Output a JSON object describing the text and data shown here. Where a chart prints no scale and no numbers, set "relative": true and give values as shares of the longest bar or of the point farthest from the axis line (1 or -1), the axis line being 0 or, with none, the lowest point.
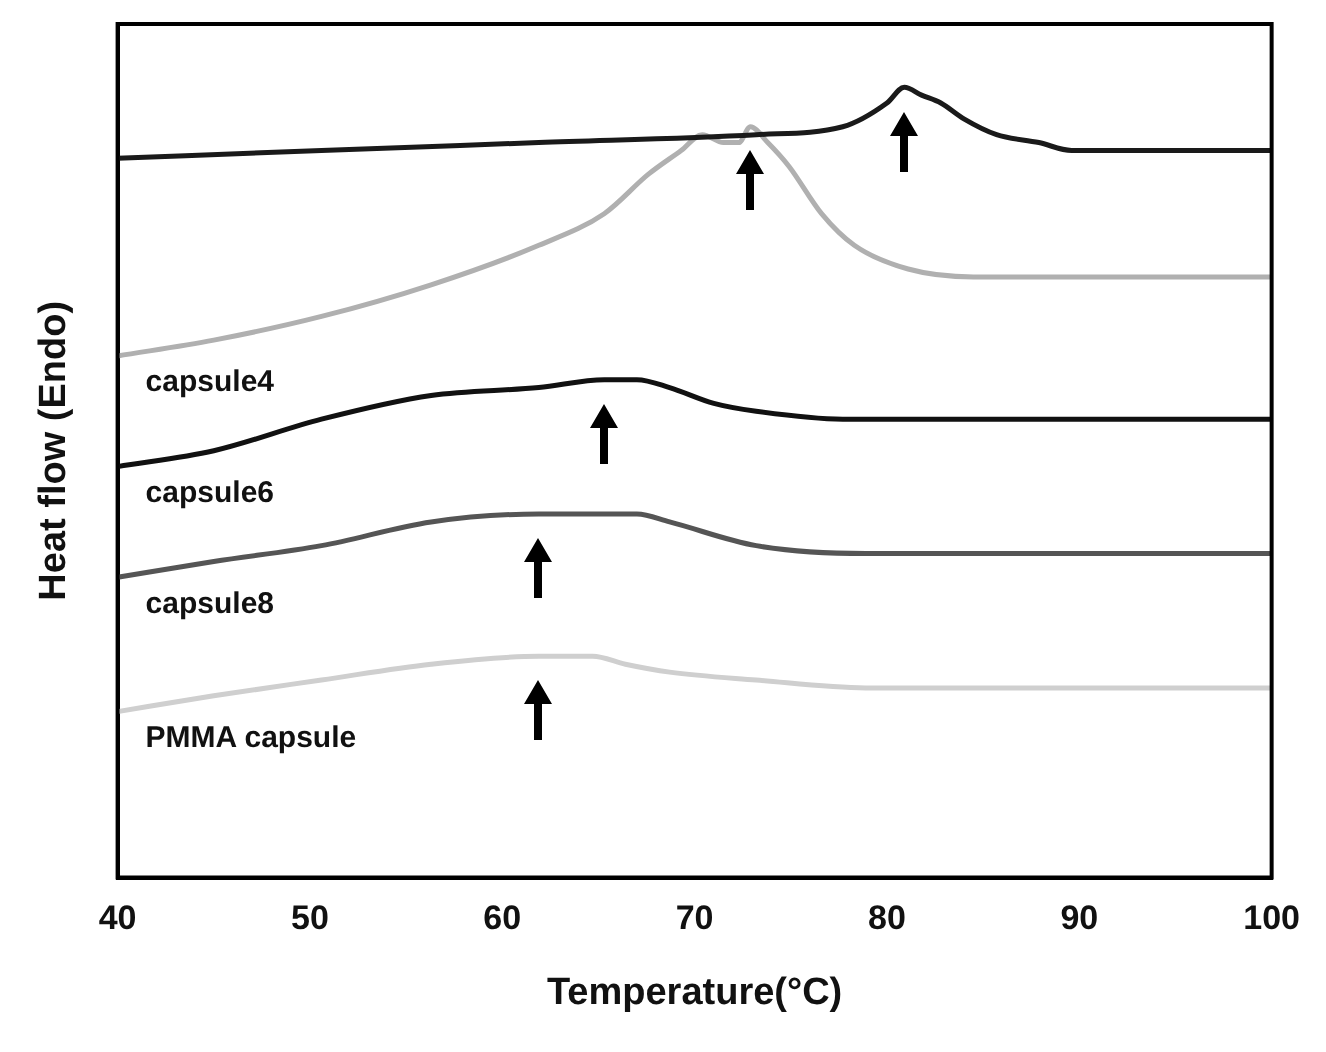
{
  "chart_data": {
    "type": "line",
    "xlabel": "Temperature(°C)",
    "ylabel": "Heat flow (Endo)",
    "relative": true,
    "xlim": [
      40,
      100
    ],
    "xticks": [
      40,
      50,
      60,
      70,
      80,
      90,
      100
    ],
    "grid": false,
    "legend": false,
    "marker": "none",
    "line_style": "solid",
    "series": [
      {
        "color": "#1a1a1a",
        "x": [
          40,
          50.6,
          61.9,
          73.2,
          77.7,
          80,
          80.9,
          81.8,
          82.8,
          84,
          85.7,
          87.9,
          89.6,
          91.3,
          95.8,
          100
        ],
        "values": [
          0.91,
          0.92,
          0.93,
          0.94,
          0.95,
          0.98,
          1,
          0.99,
          0.98,
          0.96,
          0.94,
          0.93,
          0.92,
          0.92,
          0.92,
          0.92
        ]
      },
      {
        "name": "capsule4",
        "color": "#b0b0b0",
        "x": [
          40,
          45,
          50.6,
          56.3,
          61.9,
          65.3,
          67.6,
          69.3,
          70.4,
          71.5,
          72.3,
          72.9,
          73.8,
          74.9,
          76.6,
          78.3,
          81.1,
          84.5,
          91.3,
          95.8,
          100
        ],
        "values": [
          0.66,
          0.68,
          0.71,
          0.75,
          0.8,
          0.84,
          0.89,
          0.92,
          0.94,
          0.93,
          0.93,
          0.95,
          0.93,
          0.9,
          0.84,
          0.8,
          0.77,
          0.76,
          0.76,
          0.76,
          0.76
        ]
      },
      {
        "name": "capsule6",
        "color": "#111111",
        "x": [
          40,
          45,
          50.6,
          56.3,
          61.9,
          65.3,
          67,
          68.7,
          71,
          73.2,
          77.7,
          84.5,
          100
        ],
        "values": [
          0.52,
          0.54,
          0.58,
          0.61,
          0.62,
          0.63,
          0.63,
          0.62,
          0.6,
          0.59,
          0.58,
          0.58,
          0.58
        ]
      },
      {
        "name": "capsule8",
        "color": "#555555",
        "x": [
          40,
          45,
          50.6,
          56.3,
          61.9,
          65.3,
          67,
          68.7,
          73.2,
          78.9,
          84.5,
          100
        ],
        "values": [
          0.38,
          0.4,
          0.42,
          0.45,
          0.46,
          0.46,
          0.46,
          0.45,
          0.42,
          0.41,
          0.41,
          0.41
        ]
      },
      {
        "name": "PMMA capsule",
        "color": "#cfcfcf",
        "x": [
          40,
          45,
          50.6,
          56.3,
          61.9,
          64.7,
          66.4,
          68.7,
          73.2,
          78.9,
          84.5,
          100
        ],
        "values": [
          0.21,
          0.23,
          0.25,
          0.27,
          0.28,
          0.28,
          0.27,
          0.26,
          0.25,
          0.24,
          0.24,
          0.24
        ]
      }
    ]
  }
}
